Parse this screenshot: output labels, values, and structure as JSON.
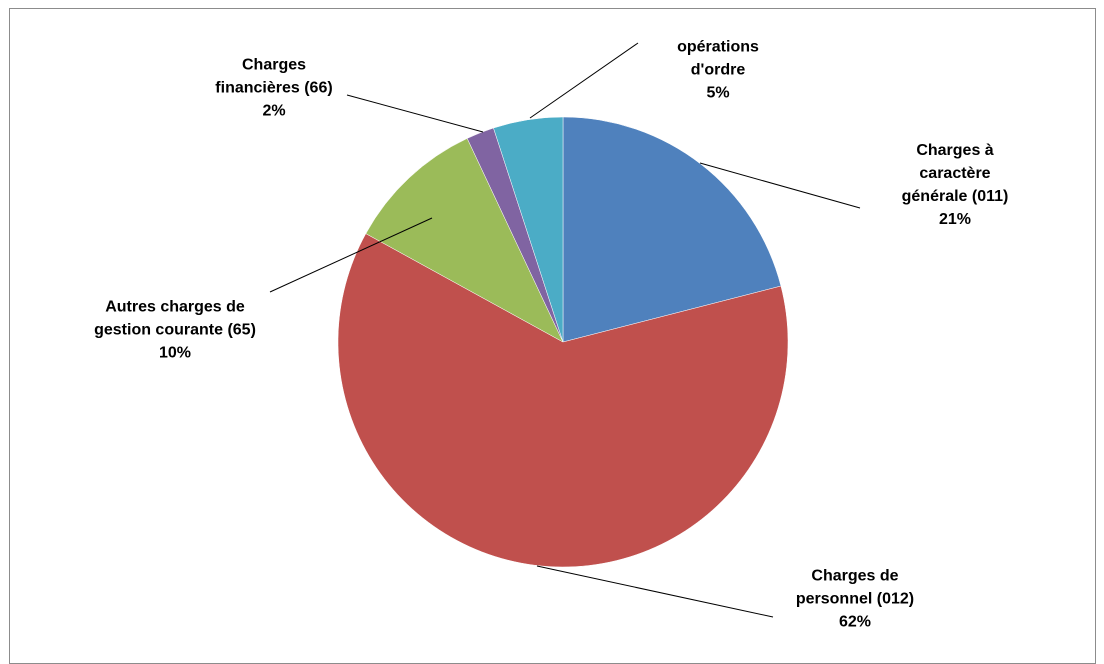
{
  "chart_data": {
    "type": "pie",
    "categories": [
      "Charges à caractère générale (011)",
      "Charges de personnel (012)",
      "Autres charges de gestion courante (65)",
      "Charges financières (66)",
      "opérations d'ordre"
    ],
    "values": [
      21,
      62,
      10,
      2,
      5
    ],
    "value_labels": [
      "21%",
      "62%",
      "10%",
      "2%",
      "5%"
    ],
    "colors": [
      "#4f81bd",
      "#c0504d",
      "#9bbb59",
      "#8064a2",
      "#4bacc6"
    ]
  }
}
